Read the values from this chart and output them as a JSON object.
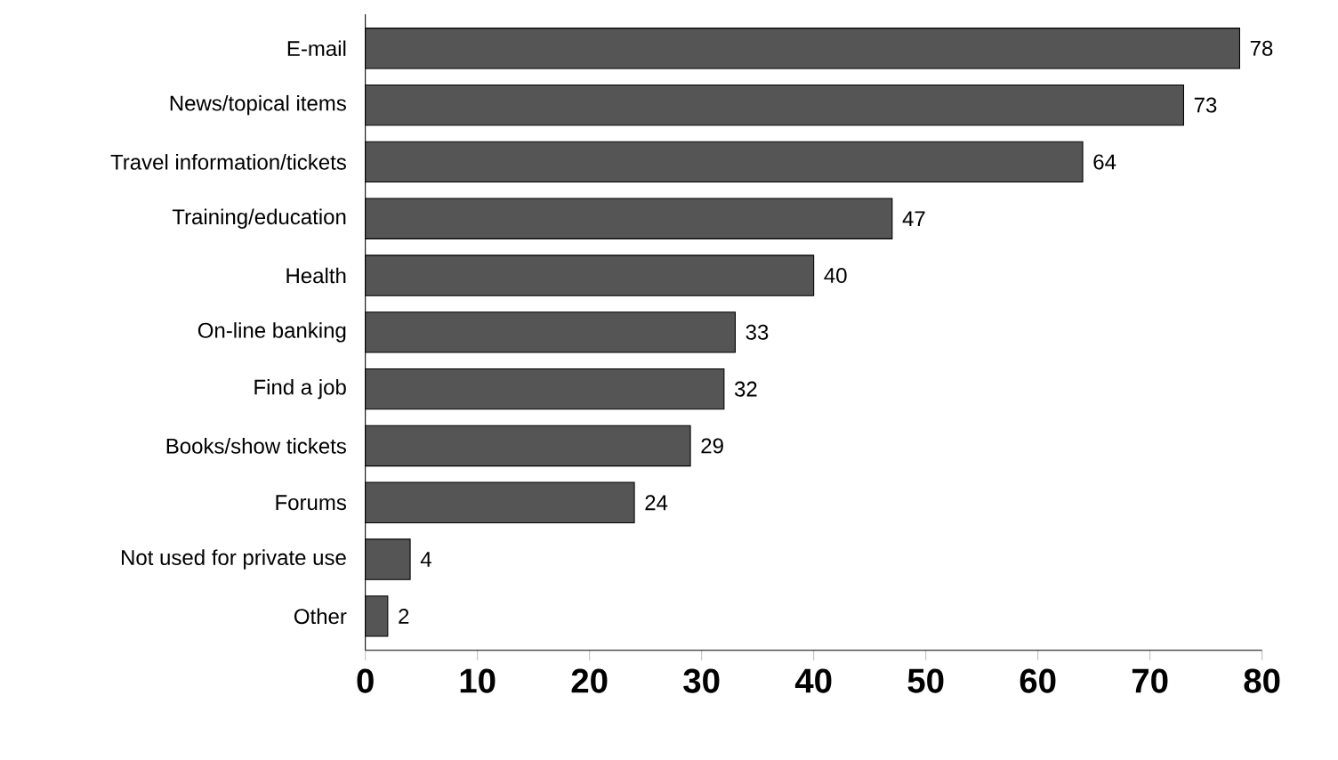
{
  "chart_data": {
    "type": "bar",
    "orientation": "horizontal",
    "categories": [
      "E-mail",
      "News/topical items",
      "Travel information/tickets",
      "Training/education",
      "Health",
      "On-line banking",
      "Find a job",
      "Books/show tickets",
      "Forums",
      "Not used for private use",
      "Other"
    ],
    "values": [
      78,
      73,
      64,
      47,
      40,
      33,
      32,
      29,
      24,
      4,
      2
    ],
    "color": "#555555",
    "data_labels": true,
    "grid": false,
    "xlim": [
      0,
      80
    ],
    "xticks": [
      0,
      10,
      20,
      30,
      40,
      50,
      60,
      70,
      80
    ]
  }
}
